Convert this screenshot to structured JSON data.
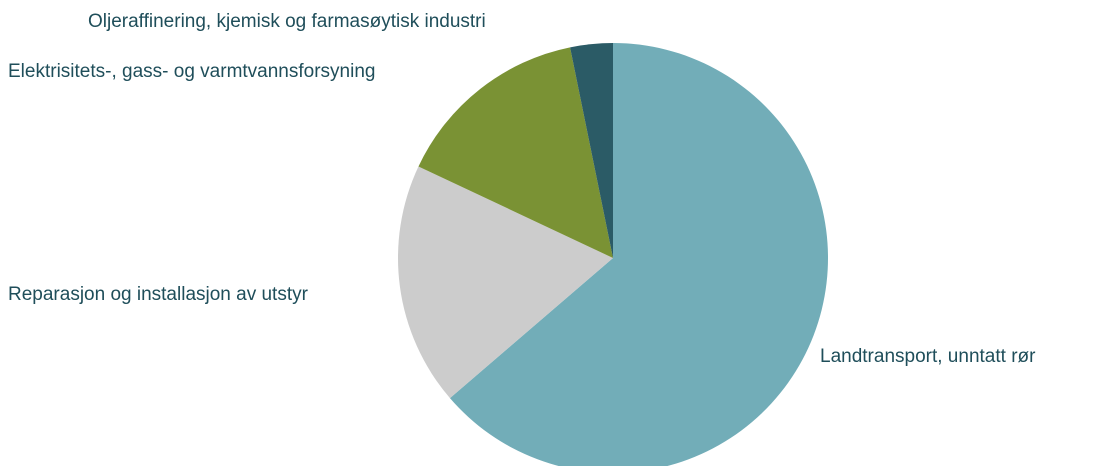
{
  "chart_data": {
    "type": "pie",
    "categories": [
      "Landtransport, unntatt rør",
      "Reparasjon og installasjon av utstyr",
      "Elektrisitets-, gass- og varmtvannsforsyning",
      "Oljeraffinering, kjemisk og farmasøytisk industri"
    ],
    "values": [
      63.7,
      18.3,
      14.8,
      3.2
    ],
    "colors": [
      "#72adb8",
      "#cccccc",
      "#7a9234",
      "#2b5b66"
    ]
  }
}
